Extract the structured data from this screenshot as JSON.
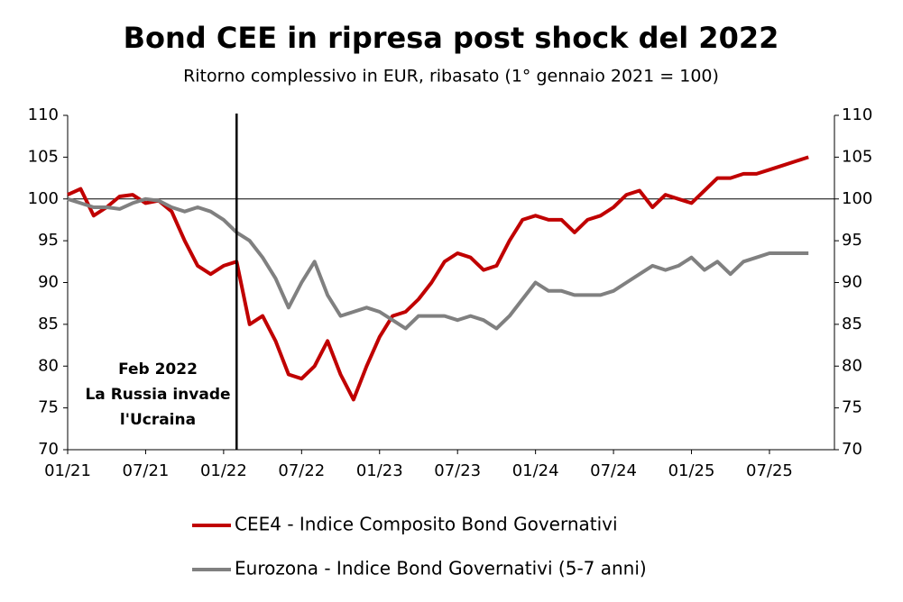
{
  "chart_data": {
    "type": "line",
    "title": "Bond CEE in ripresa post shock del 2022",
    "subtitle": "Ritorno complessivo in EUR, ribasato (1° gennaio 2021 = 100)",
    "x": [
      "2021-01",
      "2021-02",
      "2021-03",
      "2021-04",
      "2021-05",
      "2021-06",
      "2021-07",
      "2021-08",
      "2021-09",
      "2021-10",
      "2021-11",
      "2021-12",
      "2022-01",
      "2022-02",
      "2022-03",
      "2022-04",
      "2022-05",
      "2022-06",
      "2022-07",
      "2022-08",
      "2022-09",
      "2022-10",
      "2022-11",
      "2022-12",
      "2023-01",
      "2023-02",
      "2023-03",
      "2023-04",
      "2023-05",
      "2023-06",
      "2023-07",
      "2023-08",
      "2023-09",
      "2023-10",
      "2023-11",
      "2023-12",
      "2024-01",
      "2024-02",
      "2024-03",
      "2024-04",
      "2024-05",
      "2024-06",
      "2024-07",
      "2024-08",
      "2024-09",
      "2024-10",
      "2024-11",
      "2024-12",
      "2025-01",
      "2025-02",
      "2025-03",
      "2025-04",
      "2025-05",
      "2025-06",
      "2025-07",
      "2025-08",
      "2025-09",
      "2025-10"
    ],
    "series": [
      {
        "name": "CEE4 - Indice Composito Bond Governativi",
        "color": "#c00000",
        "values": [
          100.5,
          101.2,
          98,
          99,
          100.3,
          100.5,
          99.5,
          99.8,
          98.5,
          95,
          92,
          91,
          92,
          92.5,
          85,
          86,
          83,
          79,
          78.5,
          80,
          83,
          79,
          76,
          80,
          83.5,
          86,
          86.5,
          88,
          90,
          92.5,
          93.5,
          93,
          91.5,
          92,
          95,
          97.5,
          98,
          97.5,
          97.5,
          96,
          97.5,
          98,
          99,
          100.5,
          101,
          99,
          100.5,
          100,
          99.5,
          101,
          102.5,
          102.5,
          103,
          103,
          103.5,
          104,
          104.5,
          105
        ]
      },
      {
        "name": "Eurozona - Indice Bond Governativi (5-7 anni)",
        "color": "#808080",
        "values": [
          100,
          99.5,
          99,
          99,
          98.8,
          99.5,
          100,
          99.8,
          99,
          98.5,
          99,
          98.5,
          97.5,
          96,
          95,
          93,
          90.5,
          87,
          90,
          92.5,
          88.5,
          86,
          86.5,
          87,
          86.5,
          85.5,
          84.5,
          86,
          86,
          86,
          85.5,
          86,
          85.5,
          84.5,
          86,
          88,
          90,
          89,
          89,
          88.5,
          88.5,
          88.5,
          89,
          90,
          91,
          92,
          91.5,
          92,
          93,
          91.5,
          92.5,
          91,
          92.5,
          93,
          93.5,
          93.5,
          93.5,
          93.5
        ]
      }
    ],
    "xlim": [
      "2021-01",
      "2025-12"
    ],
    "xticks": [
      {
        "value": "2021-01",
        "label": "01/21"
      },
      {
        "value": "2021-07",
        "label": "07/21"
      },
      {
        "value": "2022-01",
        "label": "01/22"
      },
      {
        "value": "2022-07",
        "label": "07/22"
      },
      {
        "value": "2023-01",
        "label": "01/23"
      },
      {
        "value": "2023-07",
        "label": "07/23"
      },
      {
        "value": "2024-01",
        "label": "01/24"
      },
      {
        "value": "2024-07",
        "label": "07/24"
      },
      {
        "value": "2025-01",
        "label": "01/25"
      },
      {
        "value": "2025-07",
        "label": "07/25"
      }
    ],
    "ylim": [
      70,
      110
    ],
    "yticks": [
      70,
      75,
      80,
      85,
      90,
      95,
      100,
      105,
      110
    ],
    "y2lim": [
      70,
      110
    ],
    "y2ticks": [
      70,
      75,
      80,
      85,
      90,
      95,
      100,
      105,
      110
    ],
    "reference_line": 100,
    "annotation": {
      "x": "2022-02",
      "lines": [
        "Feb 2022",
        "La Russia invade",
        "l'Ucraina"
      ]
    }
  }
}
